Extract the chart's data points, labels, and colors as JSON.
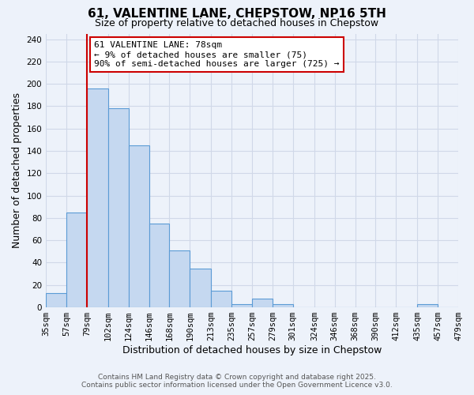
{
  "title": "61, VALENTINE LANE, CHEPSTOW, NP16 5TH",
  "subtitle": "Size of property relative to detached houses in Chepstow",
  "xlabel": "Distribution of detached houses by size in Chepstow",
  "ylabel": "Number of detached properties",
  "bin_edges": [
    35,
    57,
    79,
    102,
    124,
    146,
    168,
    190,
    213,
    235,
    257,
    279,
    301,
    324,
    346,
    368,
    390,
    412,
    435,
    457,
    479
  ],
  "bar_heights": [
    13,
    85,
    196,
    178,
    145,
    75,
    51,
    35,
    15,
    3,
    8,
    3,
    0,
    0,
    0,
    0,
    0,
    0,
    3,
    0
  ],
  "bar_color": "#c5d8f0",
  "bar_edge_color": "#5b9bd5",
  "vline_x": 79,
  "vline_color": "#cc0000",
  "ylim": [
    0,
    245
  ],
  "yticks": [
    0,
    20,
    40,
    60,
    80,
    100,
    120,
    140,
    160,
    180,
    200,
    220,
    240
  ],
  "annotation_title": "61 VALENTINE LANE: 78sqm",
  "annotation_line1": "← 9% of detached houses are smaller (75)",
  "annotation_line2": "90% of semi-detached houses are larger (725) →",
  "annotation_box_color": "#ffffff",
  "annotation_box_edge_color": "#cc0000",
  "footer_line1": "Contains HM Land Registry data © Crown copyright and database right 2025.",
  "footer_line2": "Contains public sector information licensed under the Open Government Licence v3.0.",
  "background_color": "#edf2fa",
  "grid_color": "#d0d8e8",
  "tick_labels": [
    "35sqm",
    "57sqm",
    "79sqm",
    "102sqm",
    "124sqm",
    "146sqm",
    "168sqm",
    "190sqm",
    "213sqm",
    "235sqm",
    "257sqm",
    "279sqm",
    "301sqm",
    "324sqm",
    "346sqm",
    "368sqm",
    "390sqm",
    "412sqm",
    "435sqm",
    "457sqm",
    "479sqm"
  ],
  "title_fontsize": 11,
  "subtitle_fontsize": 9,
  "axis_label_fontsize": 9,
  "tick_fontsize": 7.5,
  "annotation_fontsize": 8,
  "footer_fontsize": 6.5
}
